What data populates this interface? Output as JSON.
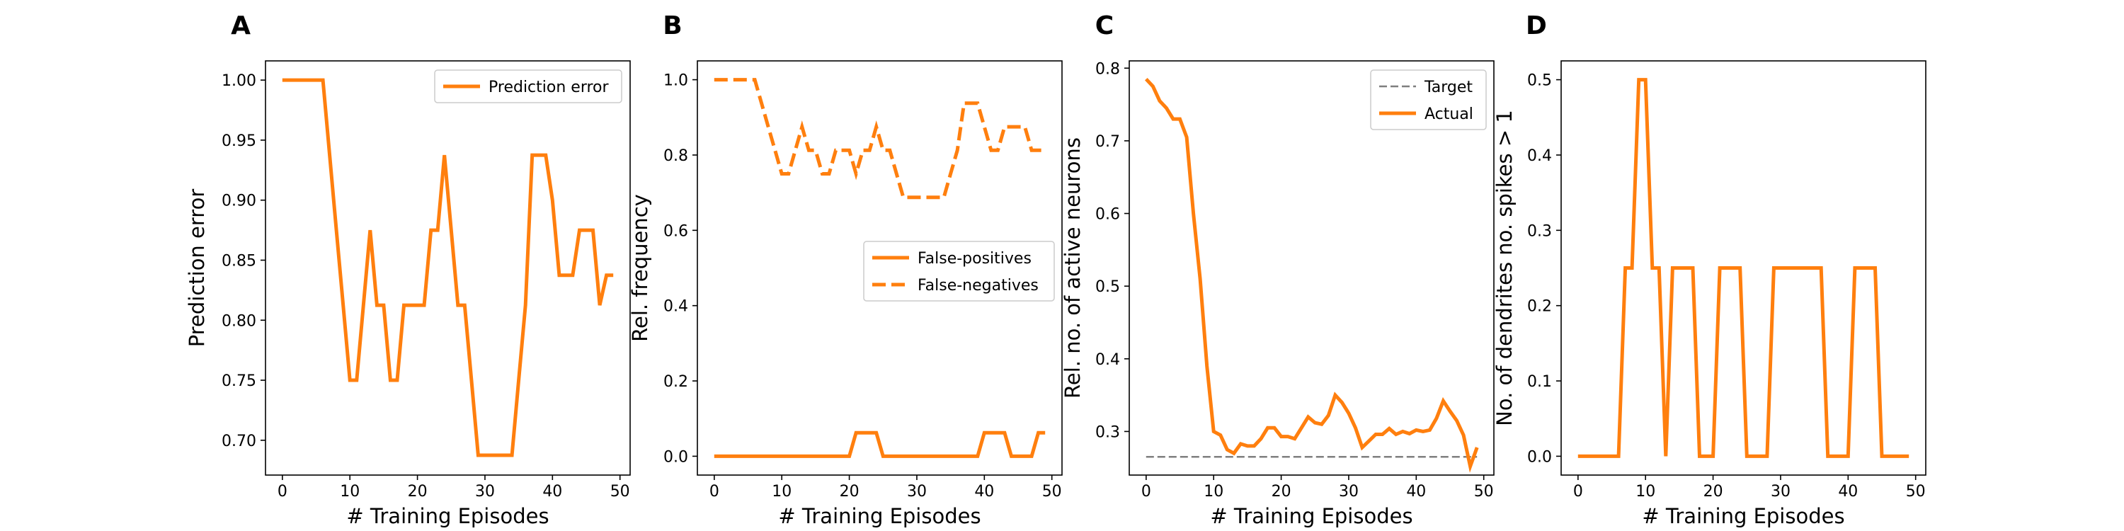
{
  "chart_data": [
    {
      "type": "line",
      "panel_label": "A",
      "title": "",
      "xlabel": "# Training Episodes",
      "ylabel": "Prediction error",
      "xlim": [
        -2.5,
        51.5
      ],
      "ylim": [
        0.671,
        1.016
      ],
      "xticks": [
        0,
        10,
        20,
        30,
        40,
        50
      ],
      "yticks": [
        0.7,
        0.75,
        0.8,
        0.85,
        0.9,
        0.95,
        1.0
      ],
      "ytick_labels": [
        "0.70",
        "0.75",
        "0.80",
        "0.85",
        "0.90",
        "0.95",
        "1.00"
      ],
      "legend_position": "upper-right",
      "series": [
        {
          "name": "Prediction error",
          "color": "#ff7f0e",
          "style": "solid",
          "x": [
            0,
            1,
            2,
            3,
            4,
            5,
            6,
            7,
            8,
            9,
            10,
            11,
            12,
            13,
            14,
            15,
            16,
            17,
            18,
            19,
            20,
            21,
            22,
            23,
            24,
            25,
            26,
            27,
            28,
            29,
            30,
            31,
            32,
            33,
            34,
            35,
            36,
            37,
            38,
            39,
            40,
            41,
            42,
            43,
            44,
            45,
            46,
            47,
            48,
            49
          ],
          "y": [
            1.0,
            1.0,
            1.0,
            1.0,
            1.0,
            1.0,
            1.0,
            0.9375,
            0.875,
            0.8125,
            0.75,
            0.75,
            0.8125,
            0.875,
            0.8125,
            0.8125,
            0.75,
            0.75,
            0.8125,
            0.8125,
            0.8125,
            0.8125,
            0.875,
            0.875,
            0.9375,
            0.875,
            0.8125,
            0.8125,
            0.75,
            0.6875,
            0.6875,
            0.6875,
            0.6875,
            0.6875,
            0.6875,
            0.75,
            0.8125,
            0.9375,
            0.9375,
            0.9375,
            0.9,
            0.8375,
            0.8375,
            0.8375,
            0.875,
            0.875,
            0.875,
            0.8125,
            0.8375,
            0.8375
          ]
        }
      ]
    },
    {
      "type": "line",
      "panel_label": "B",
      "title": "",
      "xlabel": "# Training Episodes",
      "ylabel": "Rel. frequency",
      "xlim": [
        -2.5,
        51.5
      ],
      "ylim": [
        -0.05,
        1.05
      ],
      "xticks": [
        0,
        10,
        20,
        30,
        40,
        50
      ],
      "yticks": [
        0.0,
        0.2,
        0.4,
        0.6,
        0.8,
        1.0
      ],
      "ytick_labels": [
        "0.0",
        "0.2",
        "0.4",
        "0.6",
        "0.8",
        "1.0"
      ],
      "legend_position": "center-right",
      "series": [
        {
          "name": "False-positives",
          "color": "#ff7f0e",
          "style": "solid",
          "x": [
            0,
            1,
            2,
            3,
            4,
            5,
            6,
            7,
            8,
            9,
            10,
            11,
            12,
            13,
            14,
            15,
            16,
            17,
            18,
            19,
            20,
            21,
            22,
            23,
            24,
            25,
            26,
            27,
            28,
            29,
            30,
            31,
            32,
            33,
            34,
            35,
            36,
            37,
            38,
            39,
            40,
            41,
            42,
            43,
            44,
            45,
            46,
            47,
            48,
            49
          ],
          "y": [
            0,
            0,
            0,
            0,
            0,
            0,
            0,
            0,
            0,
            0,
            0,
            0,
            0,
            0,
            0,
            0,
            0,
            0,
            0,
            0,
            0,
            0.0625,
            0.0625,
            0.0625,
            0.0625,
            0,
            0,
            0,
            0,
            0,
            0,
            0,
            0,
            0,
            0,
            0,
            0,
            0,
            0,
            0,
            0.0625,
            0.0625,
            0.0625,
            0.0625,
            0,
            0,
            0,
            0,
            0.0625,
            0.0625
          ]
        },
        {
          "name": "False-negatives",
          "color": "#ff7f0e",
          "style": "dashed",
          "x": [
            0,
            1,
            2,
            3,
            4,
            5,
            6,
            7,
            8,
            9,
            10,
            11,
            12,
            13,
            14,
            15,
            16,
            17,
            18,
            19,
            20,
            21,
            22,
            23,
            24,
            25,
            26,
            27,
            28,
            29,
            30,
            31,
            32,
            33,
            34,
            35,
            36,
            37,
            38,
            39,
            40,
            41,
            42,
            43,
            44,
            45,
            46,
            47,
            48,
            49
          ],
          "y": [
            1.0,
            1.0,
            1.0,
            1.0,
            1.0,
            1.0,
            1.0,
            0.9375,
            0.875,
            0.8125,
            0.75,
            0.75,
            0.8125,
            0.875,
            0.8125,
            0.8125,
            0.75,
            0.75,
            0.8125,
            0.8125,
            0.8125,
            0.75,
            0.8125,
            0.8125,
            0.875,
            0.8125,
            0.8125,
            0.75,
            0.6875,
            0.6875,
            0.6875,
            0.6875,
            0.6875,
            0.6875,
            0.6875,
            0.75,
            0.8125,
            0.9375,
            0.9375,
            0.9375,
            0.875,
            0.8125,
            0.8125,
            0.875,
            0.875,
            0.875,
            0.875,
            0.8125,
            0.8125,
            0.8125
          ]
        }
      ]
    },
    {
      "type": "line",
      "panel_label": "C",
      "title": "",
      "xlabel": "# Training Episodes",
      "ylabel": "Rel. no. of active neurons",
      "xlim": [
        -2.5,
        51.5
      ],
      "ylim": [
        0.24,
        0.81
      ],
      "xticks": [
        0,
        10,
        20,
        30,
        40,
        50
      ],
      "yticks": [
        0.3,
        0.4,
        0.5,
        0.6,
        0.7,
        0.8
      ],
      "ytick_labels": [
        "0.3",
        "0.4",
        "0.5",
        "0.6",
        "0.7",
        "0.8"
      ],
      "legend_position": "upper-right",
      "series": [
        {
          "name": "Target",
          "color": "#7f7f7f",
          "style": "dashed",
          "x": [
            0,
            49
          ],
          "y": [
            0.265,
            0.265
          ]
        },
        {
          "name": "Actual",
          "color": "#ff7f0e",
          "style": "solid",
          "x": [
            0,
            1,
            2,
            3,
            4,
            5,
            6,
            7,
            8,
            9,
            10,
            11,
            12,
            13,
            14,
            15,
            16,
            17,
            18,
            19,
            20,
            21,
            22,
            23,
            24,
            25,
            26,
            27,
            28,
            29,
            30,
            31,
            32,
            33,
            34,
            35,
            36,
            37,
            38,
            39,
            40,
            41,
            42,
            43,
            44,
            45,
            46,
            47,
            48,
            49
          ],
          "y": [
            0.785,
            0.775,
            0.755,
            0.745,
            0.73,
            0.73,
            0.705,
            0.6,
            0.51,
            0.39,
            0.3,
            0.295,
            0.275,
            0.27,
            0.283,
            0.28,
            0.28,
            0.29,
            0.305,
            0.305,
            0.293,
            0.293,
            0.29,
            0.305,
            0.32,
            0.312,
            0.31,
            0.322,
            0.35,
            0.34,
            0.325,
            0.305,
            0.278,
            0.287,
            0.296,
            0.296,
            0.304,
            0.296,
            0.3,
            0.297,
            0.302,
            0.3,
            0.302,
            0.318,
            0.342,
            0.328,
            0.315,
            0.295,
            0.252,
            0.278
          ]
        }
      ]
    },
    {
      "type": "line",
      "panel_label": "D",
      "title": "",
      "xlabel": "# Training Episodes",
      "ylabel": "No. of dendrites no. spikes > 1",
      "xlim": [
        -2.5,
        51.5
      ],
      "ylim": [
        -0.025,
        0.525
      ],
      "xticks": [
        0,
        10,
        20,
        30,
        40,
        50
      ],
      "yticks": [
        0.0,
        0.1,
        0.2,
        0.3,
        0.4,
        0.5
      ],
      "ytick_labels": [
        "0.0",
        "0.1",
        "0.2",
        "0.3",
        "0.4",
        "0.5"
      ],
      "legend_position": "none",
      "series": [
        {
          "name": "",
          "color": "#ff7f0e",
          "style": "solid",
          "x": [
            0,
            1,
            2,
            3,
            4,
            5,
            6,
            7,
            8,
            9,
            10,
            11,
            12,
            13,
            14,
            15,
            16,
            17,
            18,
            19,
            20,
            21,
            22,
            23,
            24,
            25,
            26,
            27,
            28,
            29,
            30,
            31,
            32,
            33,
            34,
            35,
            36,
            37,
            38,
            39,
            40,
            41,
            42,
            43,
            44,
            45,
            46,
            47,
            48,
            49
          ],
          "y": [
            0,
            0,
            0,
            0,
            0,
            0,
            0,
            0.25,
            0.25,
            0.5,
            0.5,
            0.25,
            0.25,
            0,
            0.25,
            0.25,
            0.25,
            0.25,
            0,
            0,
            0,
            0.25,
            0.25,
            0.25,
            0.25,
            0,
            0,
            0,
            0,
            0.25,
            0.25,
            0.25,
            0.25,
            0.25,
            0.25,
            0.25,
            0.25,
            0,
            0,
            0,
            0,
            0.25,
            0.25,
            0.25,
            0.25,
            0,
            0,
            0,
            0,
            0
          ]
        }
      ]
    }
  ]
}
